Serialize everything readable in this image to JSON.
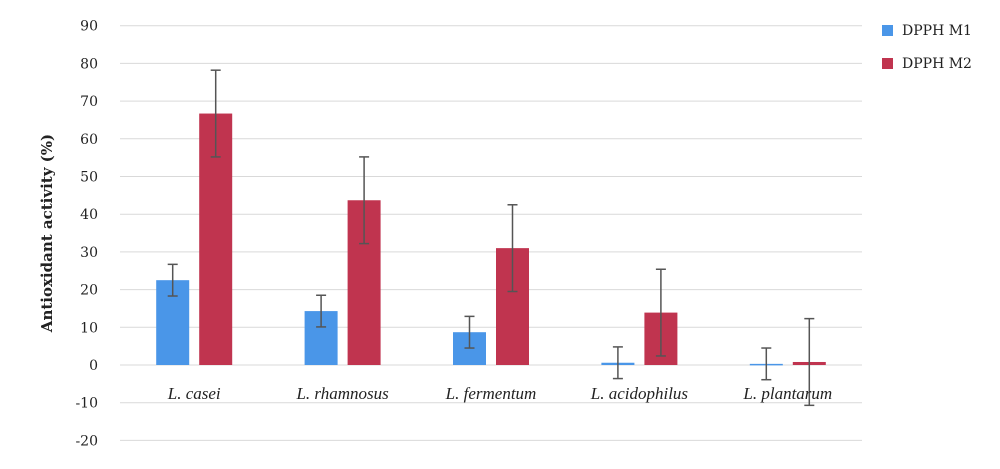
{
  "chart_data": {
    "type": "bar",
    "title": "",
    "xlabel": "",
    "ylabel": "Antioxidant activity (%)",
    "ylim": [
      -20,
      90
    ],
    "yticks": [
      -20,
      -10,
      0,
      10,
      20,
      30,
      40,
      50,
      60,
      70,
      80,
      90
    ],
    "grid": true,
    "legend_position": "top-right",
    "categories": [
      "L. casei",
      "L. rhamnosus",
      "L. fermentum",
      "L. acidophilus",
      "L. plantarum"
    ],
    "series": [
      {
        "name": "DPPH M1",
        "color": "#4a96e8",
        "values": [
          22.5,
          14.3,
          8.7,
          0.6,
          0.3
        ],
        "errors": [
          4.2,
          4.2,
          4.2,
          4.2,
          4.2
        ]
      },
      {
        "name": "DPPH M2",
        "color": "#c0344f",
        "values": [
          66.7,
          43.7,
          31.0,
          13.9,
          0.8
        ],
        "errors": [
          11.5,
          11.5,
          11.5,
          11.5,
          11.5
        ]
      }
    ]
  }
}
